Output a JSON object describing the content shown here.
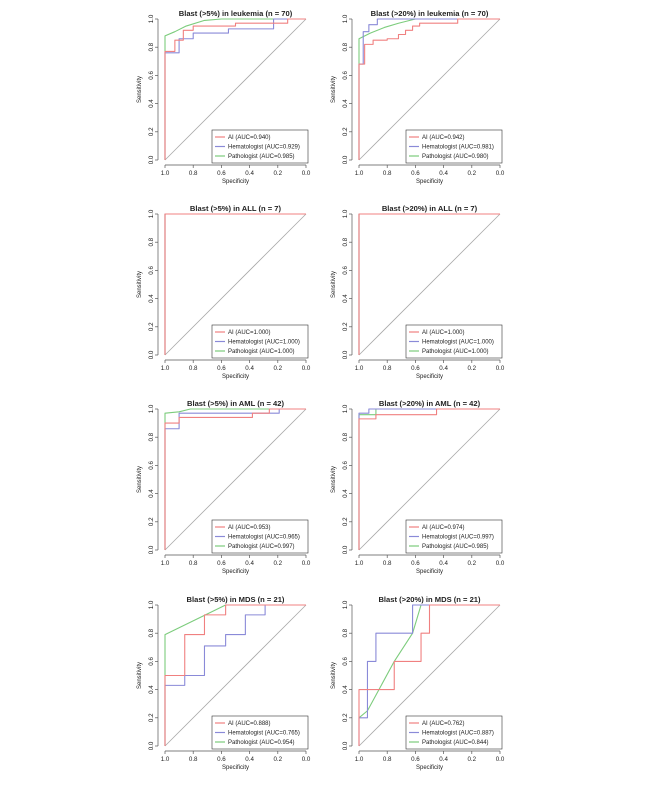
{
  "colors": {
    "AI": "#f08080",
    "Hematologist": "#8a8ad8",
    "Pathologist": "#7ccc7c",
    "reference": "#a8a8a8",
    "axis": "#555555"
  },
  "chart_data": [
    {
      "type": "line",
      "title": "Blast (>5%) in leukemia (n = 70)",
      "xlabel": "Specificity",
      "ylabel": "Sensitivity",
      "xlim": [
        1.0,
        0.0
      ],
      "ylim": [
        0.0,
        1.0
      ],
      "xticks": [
        "1.0",
        "0.8",
        "0.6",
        "0.4",
        "0.2",
        "0.0"
      ],
      "yticks": [
        "0.0",
        "0.2",
        "0.4",
        "0.6",
        "0.8",
        "1.0"
      ],
      "legend_position": "bottom-right",
      "series": [
        {
          "name": "AI",
          "legend": "AI (AUC=0.940)",
          "color": "#f08080",
          "x": [
            1.0,
            1.0,
            0.93,
            0.93,
            0.87,
            0.87,
            0.8,
            0.8,
            0.5,
            0.5,
            0.13,
            0.13,
            0.0
          ],
          "y": [
            0.0,
            0.77,
            0.77,
            0.85,
            0.85,
            0.92,
            0.92,
            0.95,
            0.95,
            0.97,
            0.97,
            1.0,
            1.0
          ]
        },
        {
          "name": "Hematologist",
          "legend": "Hematologist (AUC=0.929)",
          "color": "#8a8ad8",
          "x": [
            1.0,
            1.0,
            0.9,
            0.9,
            0.8,
            0.8,
            0.55,
            0.55,
            0.23,
            0.23,
            0.0
          ],
          "y": [
            0.0,
            0.76,
            0.76,
            0.86,
            0.86,
            0.9,
            0.9,
            0.93,
            0.93,
            1.0,
            1.0
          ]
        },
        {
          "name": "Pathologist",
          "legend": "Pathologist (AUC=0.985)",
          "color": "#7ccc7c",
          "x": [
            1.0,
            1.0,
            0.93,
            0.85,
            0.72,
            0.6,
            0.0
          ],
          "y": [
            0.0,
            0.88,
            0.91,
            0.95,
            0.99,
            1.0,
            1.0
          ]
        }
      ]
    },
    {
      "type": "line",
      "title": "Blast (>20%) in leukemia (n = 70)",
      "xlabel": "Specificity",
      "ylabel": "Sensitivity",
      "xlim": [
        1.0,
        0.0
      ],
      "ylim": [
        0.0,
        1.0
      ],
      "xticks": [
        "1.0",
        "0.8",
        "0.6",
        "0.4",
        "0.2",
        "0.0"
      ],
      "yticks": [
        "0.0",
        "0.2",
        "0.4",
        "0.6",
        "0.8",
        "1.0"
      ],
      "legend_position": "bottom-right",
      "series": [
        {
          "name": "AI",
          "legend": "AI (AUC=0.942)",
          "color": "#f08080",
          "x": [
            1.0,
            1.0,
            0.96,
            0.96,
            0.9,
            0.9,
            0.8,
            0.8,
            0.72,
            0.72,
            0.67,
            0.67,
            0.62,
            0.62,
            0.57,
            0.57,
            0.3,
            0.3,
            0.0
          ],
          "y": [
            0.0,
            0.68,
            0.68,
            0.82,
            0.82,
            0.85,
            0.85,
            0.86,
            0.86,
            0.89,
            0.89,
            0.92,
            0.92,
            0.95,
            0.95,
            0.97,
            0.97,
            1.0,
            1.0
          ]
        },
        {
          "name": "Hematologist",
          "legend": "Hematologist (AUC=0.981)",
          "color": "#8a8ad8",
          "x": [
            1.0,
            1.0,
            0.97,
            0.97,
            0.93,
            0.93,
            0.87,
            0.87,
            0.0
          ],
          "y": [
            0.0,
            0.68,
            0.68,
            0.91,
            0.91,
            0.96,
            0.96,
            1.0,
            1.0
          ]
        },
        {
          "name": "Pathologist",
          "legend": "Pathologist (AUC=0.980)",
          "color": "#7ccc7c",
          "x": [
            1.0,
            1.0,
            0.92,
            0.82,
            0.72,
            0.6,
            0.0
          ],
          "y": [
            0.0,
            0.86,
            0.9,
            0.94,
            0.97,
            1.0,
            1.0
          ]
        }
      ]
    },
    {
      "type": "line",
      "title": "Blast (>5%) in ALL (n = 7)",
      "xlabel": "Specificity",
      "ylabel": "Sensitivity",
      "xlim": [
        1.0,
        0.0
      ],
      "ylim": [
        0.0,
        1.0
      ],
      "xticks": [
        "1.0",
        "0.8",
        "0.6",
        "0.4",
        "0.2",
        "0.0"
      ],
      "yticks": [
        "0.0",
        "0.2",
        "0.4",
        "0.6",
        "0.8",
        "1.0"
      ],
      "legend_position": "bottom-right",
      "series": [
        {
          "name": "AI",
          "legend": "AI (AUC=1.000)",
          "color": "#f08080",
          "x": [
            1.0,
            1.0,
            0.0
          ],
          "y": [
            0.0,
            1.0,
            1.0
          ]
        },
        {
          "name": "Hematologist",
          "legend": "Hematologist (AUC=1.000)",
          "color": "#8a8ad8",
          "x": [
            1.0,
            1.0,
            0.0
          ],
          "y": [
            0.0,
            1.0,
            1.0
          ]
        },
        {
          "name": "Pathologist",
          "legend": "Pathologist (AUC=1.000)",
          "color": "#7ccc7c",
          "x": [
            1.0,
            1.0,
            0.0
          ],
          "y": [
            0.0,
            1.0,
            1.0
          ]
        }
      ]
    },
    {
      "type": "line",
      "title": "Blast (>20%) in ALL (n = 7)",
      "xlabel": "Specificity",
      "ylabel": "Sensitivity",
      "xlim": [
        1.0,
        0.0
      ],
      "ylim": [
        0.0,
        1.0
      ],
      "xticks": [
        "1.0",
        "0.8",
        "0.6",
        "0.4",
        "0.2",
        "0.0"
      ],
      "yticks": [
        "0.0",
        "0.2",
        "0.4",
        "0.6",
        "0.8",
        "1.0"
      ],
      "legend_position": "bottom-right",
      "series": [
        {
          "name": "AI",
          "legend": "AI (AUC=1.000)",
          "color": "#f08080",
          "x": [
            1.0,
            1.0,
            0.0
          ],
          "y": [
            0.0,
            1.0,
            1.0
          ]
        },
        {
          "name": "Hematologist",
          "legend": "Hematologist (AUC=1.000)",
          "color": "#8a8ad8",
          "x": [
            1.0,
            1.0,
            0.0
          ],
          "y": [
            0.0,
            1.0,
            1.0
          ]
        },
        {
          "name": "Pathologist",
          "legend": "Pathologist (AUC=1.000)",
          "color": "#7ccc7c",
          "x": [
            1.0,
            1.0,
            0.0
          ],
          "y": [
            0.0,
            1.0,
            1.0
          ]
        }
      ]
    },
    {
      "type": "line",
      "title": "Blast (>5%) in AML (n = 42)",
      "xlabel": "Specificity",
      "ylabel": "Sensitivity",
      "xlim": [
        1.0,
        0.0
      ],
      "ylim": [
        0.0,
        1.0
      ],
      "xticks": [
        "1.0",
        "0.8",
        "0.6",
        "0.4",
        "0.2",
        "0.0"
      ],
      "yticks": [
        "0.0",
        "0.2",
        "0.4",
        "0.6",
        "0.8",
        "1.0"
      ],
      "legend_position": "bottom-right",
      "series": [
        {
          "name": "AI",
          "legend": "AI (AUC=0.953)",
          "color": "#f08080",
          "x": [
            1.0,
            1.0,
            0.9,
            0.9,
            0.38,
            0.38,
            0.26,
            0.26,
            0.0
          ],
          "y": [
            0.0,
            0.9,
            0.9,
            0.94,
            0.94,
            0.97,
            0.97,
            1.0,
            1.0
          ]
        },
        {
          "name": "Hematologist",
          "legend": "Hematologist (AUC=0.965)",
          "color": "#8a8ad8",
          "x": [
            1.0,
            1.0,
            0.9,
            0.9,
            0.19,
            0.19,
            0.0
          ],
          "y": [
            0.0,
            0.86,
            0.86,
            0.97,
            0.97,
            1.0,
            1.0
          ]
        },
        {
          "name": "Pathologist",
          "legend": "Pathologist (AUC=0.997)",
          "color": "#7ccc7c",
          "x": [
            1.0,
            1.0,
            0.9,
            0.82,
            0.0
          ],
          "y": [
            0.0,
            0.97,
            0.98,
            1.0,
            1.0
          ]
        }
      ]
    },
    {
      "type": "line",
      "title": "Blast (>20%) in AML (n = 42)",
      "xlabel": "Specificity",
      "ylabel": "Sensitivity",
      "xlim": [
        1.0,
        0.0
      ],
      "ylim": [
        0.0,
        1.0
      ],
      "xticks": [
        "1.0",
        "0.8",
        "0.6",
        "0.4",
        "0.2",
        "0.0"
      ],
      "yticks": [
        "0.0",
        "0.2",
        "0.4",
        "0.6",
        "0.8",
        "1.0"
      ],
      "legend_position": "bottom-right",
      "series": [
        {
          "name": "AI",
          "legend": "AI (AUC=0.974)",
          "color": "#f08080",
          "x": [
            1.0,
            1.0,
            0.88,
            0.88,
            0.45,
            0.45,
            0.0
          ],
          "y": [
            0.0,
            0.93,
            0.93,
            0.96,
            0.96,
            1.0,
            1.0
          ]
        },
        {
          "name": "Hematologist",
          "legend": "Hematologist (AUC=0.997)",
          "color": "#8a8ad8",
          "x": [
            1.0,
            1.0,
            0.93,
            0.93,
            0.0
          ],
          "y": [
            0.0,
            0.97,
            0.97,
            1.0,
            1.0
          ]
        },
        {
          "name": "Pathologist",
          "legend": "Pathologist (AUC=0.985)",
          "color": "#7ccc7c",
          "x": [
            1.0,
            1.0,
            0.88,
            0.88,
            0.0
          ],
          "y": [
            0.0,
            0.96,
            0.96,
            1.0,
            1.0
          ]
        }
      ]
    },
    {
      "type": "line",
      "title": "Blast (>5%) in MDS (n = 21)",
      "xlabel": "Specificity",
      "ylabel": "Sensitivity",
      "xlim": [
        1.0,
        0.0
      ],
      "ylim": [
        0.0,
        1.0
      ],
      "xticks": [
        "1.0",
        "0.8",
        "0.6",
        "0.4",
        "0.2",
        "0.0"
      ],
      "yticks": [
        "0.0",
        "0.2",
        "0.4",
        "0.6",
        "0.8",
        "1.0"
      ],
      "legend_position": "bottom-right",
      "series": [
        {
          "name": "AI",
          "legend": "AI (AUC=0.888)",
          "color": "#f08080",
          "x": [
            1.0,
            1.0,
            0.86,
            0.86,
            0.72,
            0.72,
            0.57,
            0.57,
            0.0
          ],
          "y": [
            0.0,
            0.5,
            0.5,
            0.79,
            0.79,
            0.93,
            0.93,
            1.0,
            1.0
          ]
        },
        {
          "name": "Hematologist",
          "legend": "Hematologist (AUC=0.765)",
          "color": "#8a8ad8",
          "x": [
            1.0,
            1.0,
            0.86,
            0.86,
            0.72,
            0.72,
            0.57,
            0.57,
            0.43,
            0.43,
            0.29,
            0.29,
            0.0
          ],
          "y": [
            0.0,
            0.43,
            0.43,
            0.5,
            0.5,
            0.71,
            0.71,
            0.79,
            0.79,
            0.93,
            0.93,
            1.0,
            1.0
          ]
        },
        {
          "name": "Pathologist",
          "legend": "Pathologist (AUC=0.954)",
          "color": "#7ccc7c",
          "x": [
            1.0,
            1.0,
            0.57,
            0.0
          ],
          "y": [
            0.0,
            0.79,
            1.0,
            1.0
          ]
        }
      ]
    },
    {
      "type": "line",
      "title": "Blast (>20%) in MDS (n = 21)",
      "xlabel": "Specificity",
      "ylabel": "Sensitivity",
      "xlim": [
        1.0,
        0.0
      ],
      "ylim": [
        0.0,
        1.0
      ],
      "xticks": [
        "1.0",
        "0.8",
        "0.6",
        "0.4",
        "0.2",
        "0.0"
      ],
      "yticks": [
        "0.0",
        "0.2",
        "0.4",
        "0.6",
        "0.8",
        "1.0"
      ],
      "legend_position": "bottom-right",
      "series": [
        {
          "name": "AI",
          "legend": "AI (AUC=0.762)",
          "color": "#f08080",
          "x": [
            1.0,
            1.0,
            0.94,
            0.94,
            0.75,
            0.75,
            0.56,
            0.56,
            0.5,
            0.5,
            0.0
          ],
          "y": [
            0.0,
            0.4,
            0.4,
            0.4,
            0.4,
            0.6,
            0.6,
            0.8,
            0.8,
            1.0,
            1.0
          ]
        },
        {
          "name": "Hematologist",
          "legend": "Hematologist (AUC=0.887)",
          "color": "#8a8ad8",
          "x": [
            1.0,
            1.0,
            0.94,
            0.94,
            0.88,
            0.88,
            0.69,
            0.69,
            0.62,
            0.62,
            0.0
          ],
          "y": [
            0.0,
            0.2,
            0.2,
            0.6,
            0.6,
            0.8,
            0.8,
            0.8,
            0.8,
            1.0,
            1.0
          ]
        },
        {
          "name": "Pathologist",
          "legend": "Pathologist (AUC=0.844)",
          "color": "#7ccc7c",
          "x": [
            1.0,
            0.94,
            0.75,
            0.62,
            0.56,
            0.0
          ],
          "y": [
            0.2,
            0.25,
            0.6,
            0.8,
            1.0,
            1.0
          ]
        }
      ]
    }
  ]
}
